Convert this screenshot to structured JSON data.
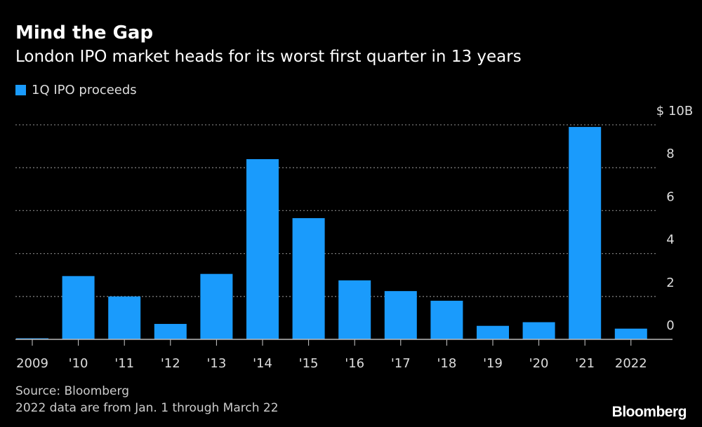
{
  "header": {
    "title": "Mind the Gap",
    "subtitle": "London IPO market heads for its worst first quarter in 13 years"
  },
  "footer": {
    "source": "Source: Bloomberg",
    "note": "2022 data are from Jan. 1 through March 22",
    "logo": "Bloomberg"
  },
  "colors": {
    "bar": "#1a9bfc",
    "background": "#000000",
    "grid": "#777777"
  },
  "chart_data": {
    "type": "bar",
    "title": "Mind the Gap",
    "subtitle": "London IPO market heads for its worst first quarter in 13 years",
    "legend": {
      "entries": [
        "1Q IPO proceeds"
      ],
      "placement": "top-left"
    },
    "categories": [
      "2009",
      "'10",
      "'11",
      "'12",
      "'13",
      "'14",
      "'15",
      "'16",
      "'17",
      "'18",
      "'19",
      "'20",
      "'21",
      "2022"
    ],
    "series": [
      {
        "name": "1Q IPO proceeds",
        "values": [
          0.05,
          2.95,
          2.0,
          0.72,
          3.05,
          8.4,
          5.65,
          2.75,
          2.25,
          1.8,
          0.63,
          0.8,
          9.9,
          0.5
        ]
      }
    ],
    "yaxis": {
      "ticks": [
        0,
        2,
        4,
        6,
        8,
        10
      ],
      "tick_labels": [
        "0",
        "2",
        "4",
        "6",
        "8",
        "$ 10B"
      ],
      "position": "right"
    },
    "ylim": [
      0,
      10
    ],
    "unit": "$ billions",
    "grid": true
  }
}
